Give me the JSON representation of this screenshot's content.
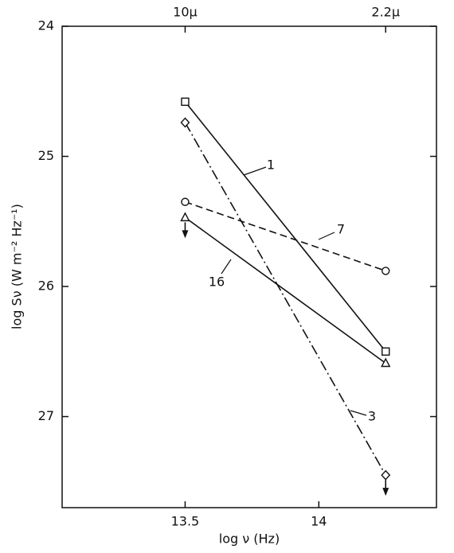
{
  "chart_data": {
    "type": "line",
    "x_label": "log ν (Hz)",
    "y_label": "log Sν (W m⁻² Hz⁻¹)",
    "xlim": [
      13.04,
      14.44
    ],
    "xticks": [
      13.5,
      14.0
    ],
    "top_ticks": [
      {
        "value": 13.5,
        "label": "10μ"
      },
      {
        "value": 14.25,
        "label": "2.2μ"
      }
    ],
    "ylim": [
      27.7,
      24
    ],
    "yticks": [
      24,
      25,
      26,
      27
    ],
    "color": "#111111",
    "series": [
      {
        "name": "1",
        "x": [
          13.5,
          14.25
        ],
        "values": [
          24.58,
          26.5
        ],
        "marker": "square",
        "dash": "solid",
        "upper_limits": [
          false,
          false
        ]
      },
      {
        "name": "3",
        "x": [
          13.5,
          14.25
        ],
        "values": [
          24.74,
          27.45
        ],
        "marker": "diamond",
        "dash": "dashdot",
        "upper_limits": [
          false,
          true
        ]
      },
      {
        "name": "7",
        "x": [
          13.5,
          14.25
        ],
        "values": [
          25.35,
          25.88
        ],
        "marker": "circle",
        "dash": "dashed",
        "upper_limits": [
          false,
          false
        ]
      },
      {
        "name": "16",
        "x": [
          13.5,
          14.25
        ],
        "values": [
          25.47,
          26.59
        ],
        "marker": "triangle",
        "dash": "solid",
        "upper_limits": [
          true,
          false
        ]
      }
    ]
  }
}
